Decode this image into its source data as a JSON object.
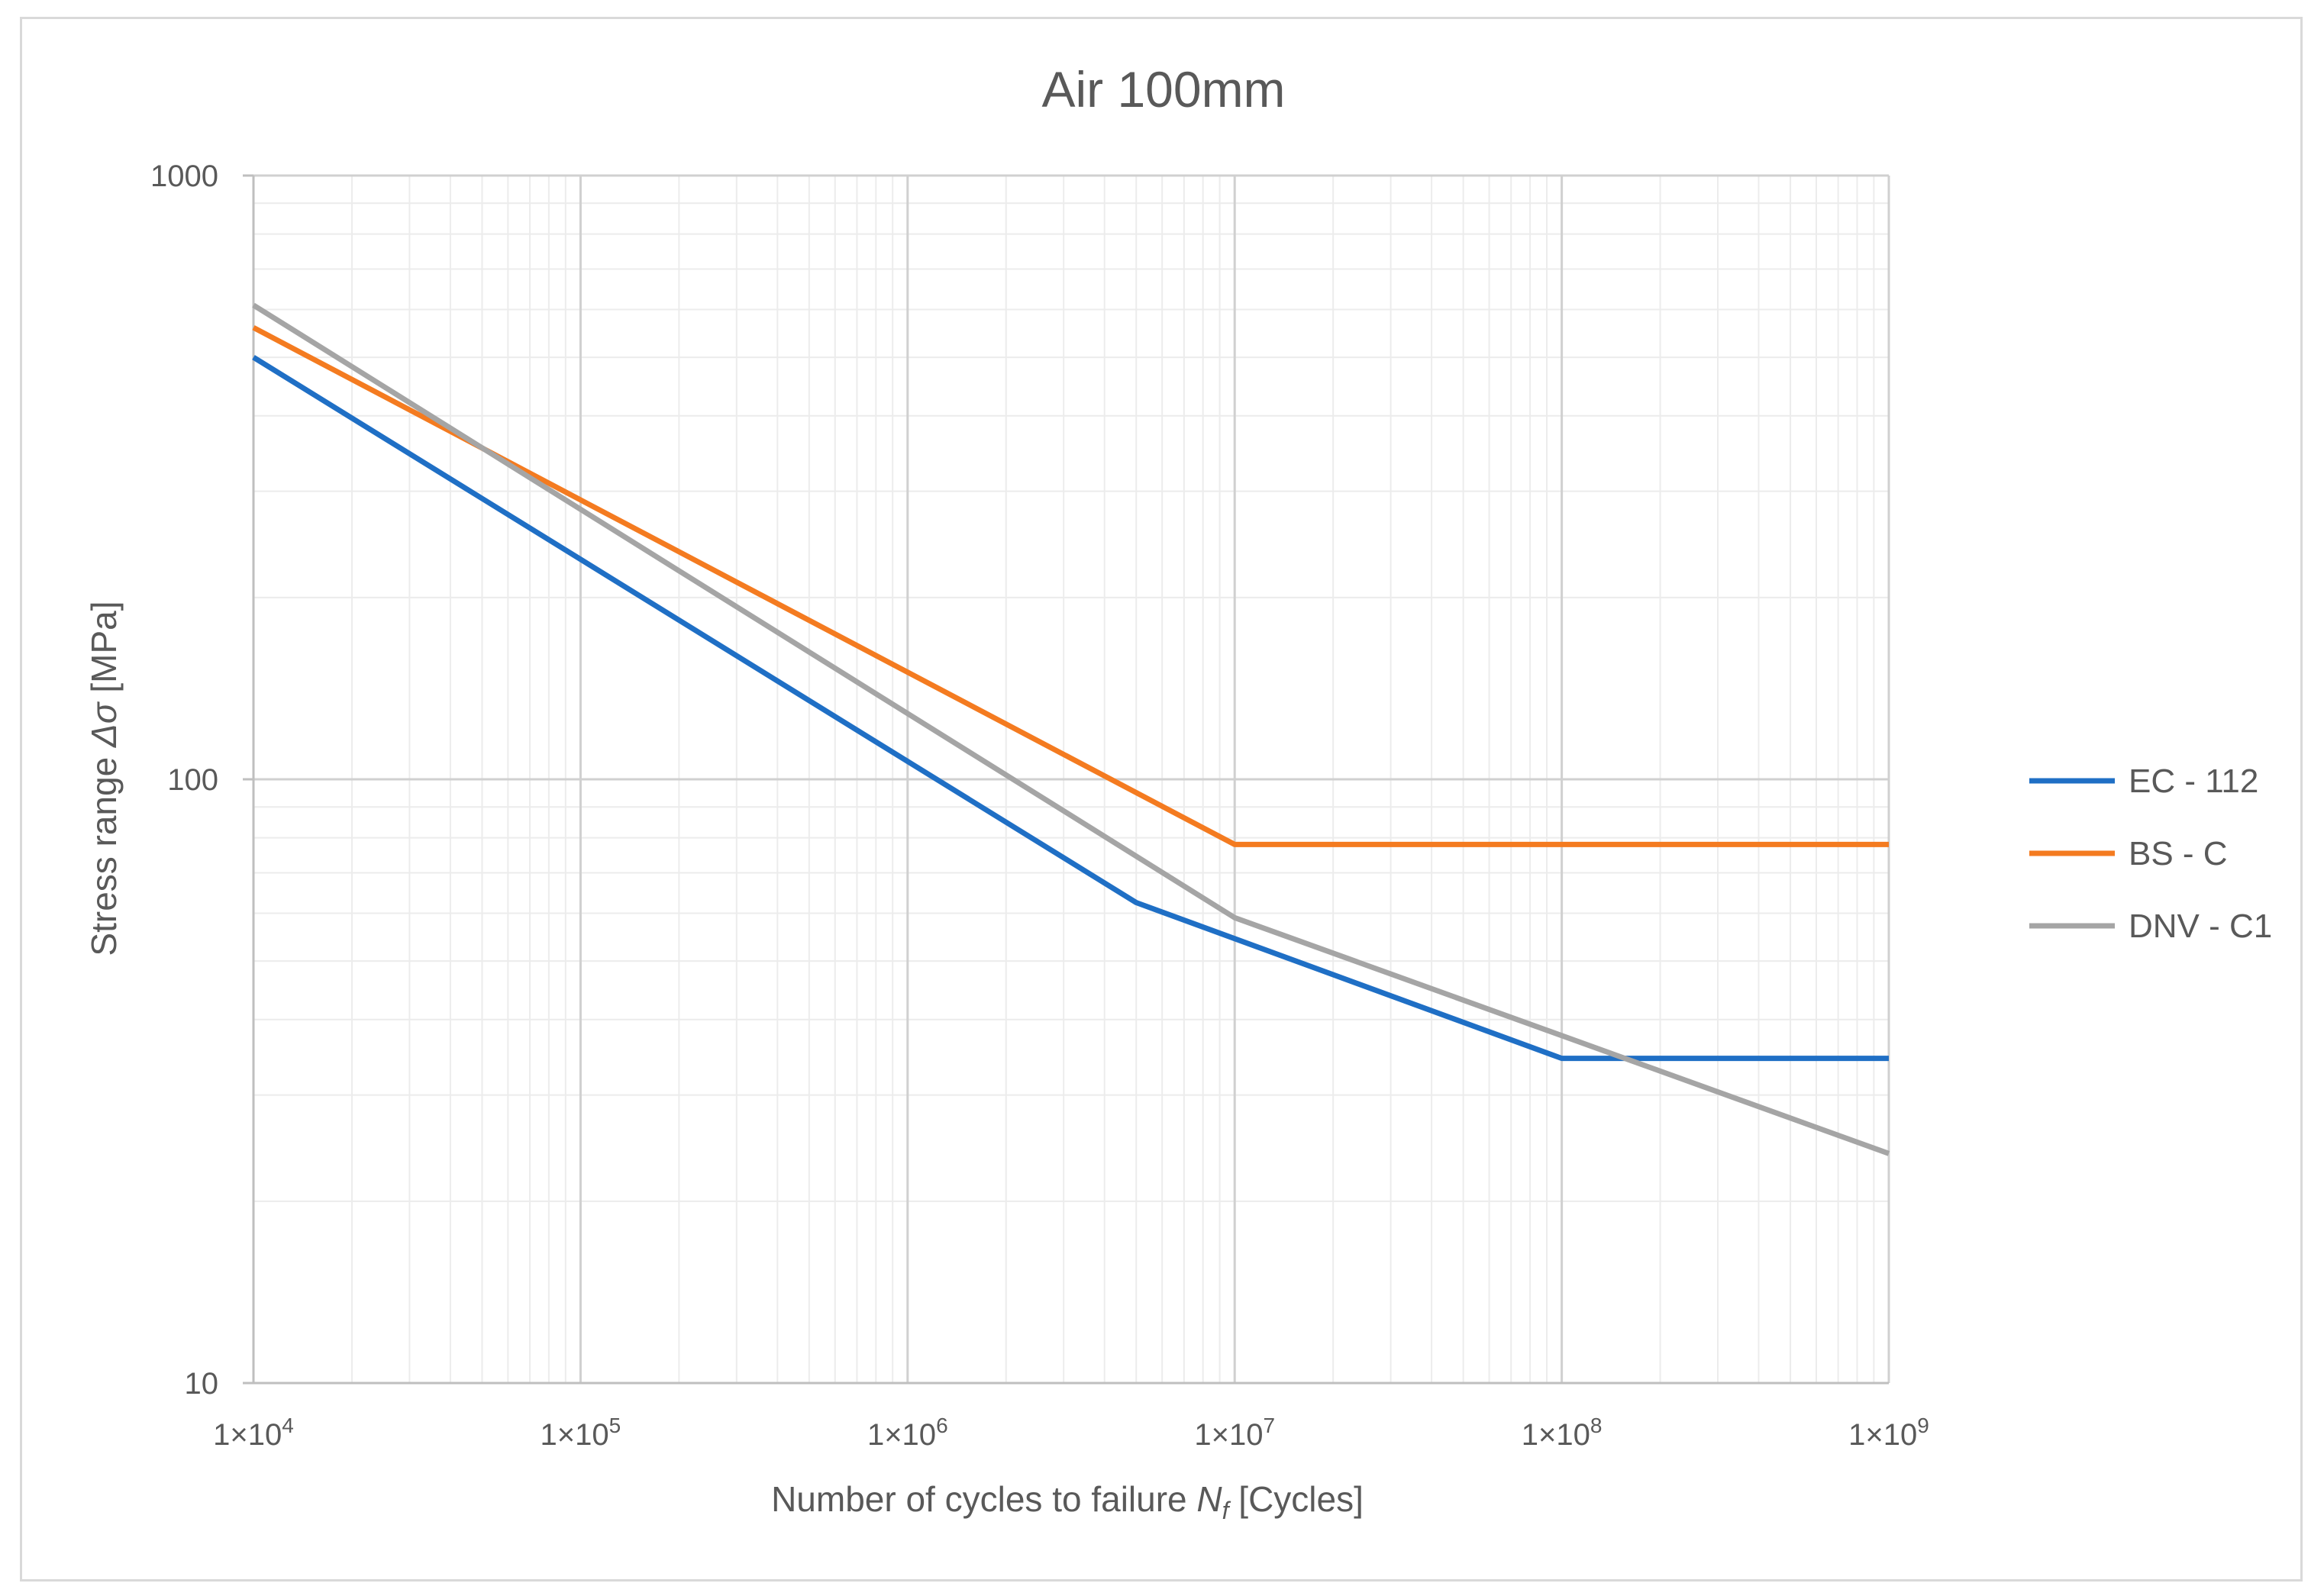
{
  "chart_data": {
    "type": "line",
    "title": "Air 100mm",
    "xlabel": {
      "main": "Number  of cycles to failure ",
      "symbol": "N",
      "subscript": "f",
      "unit": " [Cycles]"
    },
    "ylabel": {
      "main": "Stress range ",
      "symbol": "Δσ",
      "unit": " [MPa]"
    },
    "x_scale": "log",
    "y_scale": "log",
    "xlim": [
      10000,
      1000000000
    ],
    "ylim": [
      10,
      1000
    ],
    "x_ticks": [
      {
        "value": 10000,
        "base": "1×10",
        "exp": "4"
      },
      {
        "value": 100000,
        "base": "1×10",
        "exp": "5"
      },
      {
        "value": 1000000,
        "base": "1×10",
        "exp": "6"
      },
      {
        "value": 10000000,
        "base": "1×10",
        "exp": "7"
      },
      {
        "value": 100000000,
        "base": "1×10",
        "exp": "8"
      },
      {
        "value": 1000000000,
        "base": "1×10",
        "exp": "9"
      }
    ],
    "y_ticks": [
      {
        "value": 10,
        "label": "10"
      },
      {
        "value": 100,
        "label": "100"
      },
      {
        "value": 1000,
        "label": "1000"
      }
    ],
    "grid": true,
    "legend_position": "right",
    "series": [
      {
        "name": "EC - 112",
        "color": "#1f6fc5",
        "x": [
          10000,
          5000000,
          100000000,
          1000000000
        ],
        "y": [
          500,
          62.5,
          34.5,
          34.5
        ]
      },
      {
        "name": "BS - C",
        "color": "#f47b20",
        "x": [
          10000,
          10000000,
          1000000000
        ],
        "y": [
          560,
          78,
          78
        ]
      },
      {
        "name": "DNV - C1",
        "color": "#a5a5a5",
        "x": [
          10000,
          10000000,
          1000000000
        ],
        "y": [
          610,
          59,
          24
        ]
      }
    ]
  }
}
